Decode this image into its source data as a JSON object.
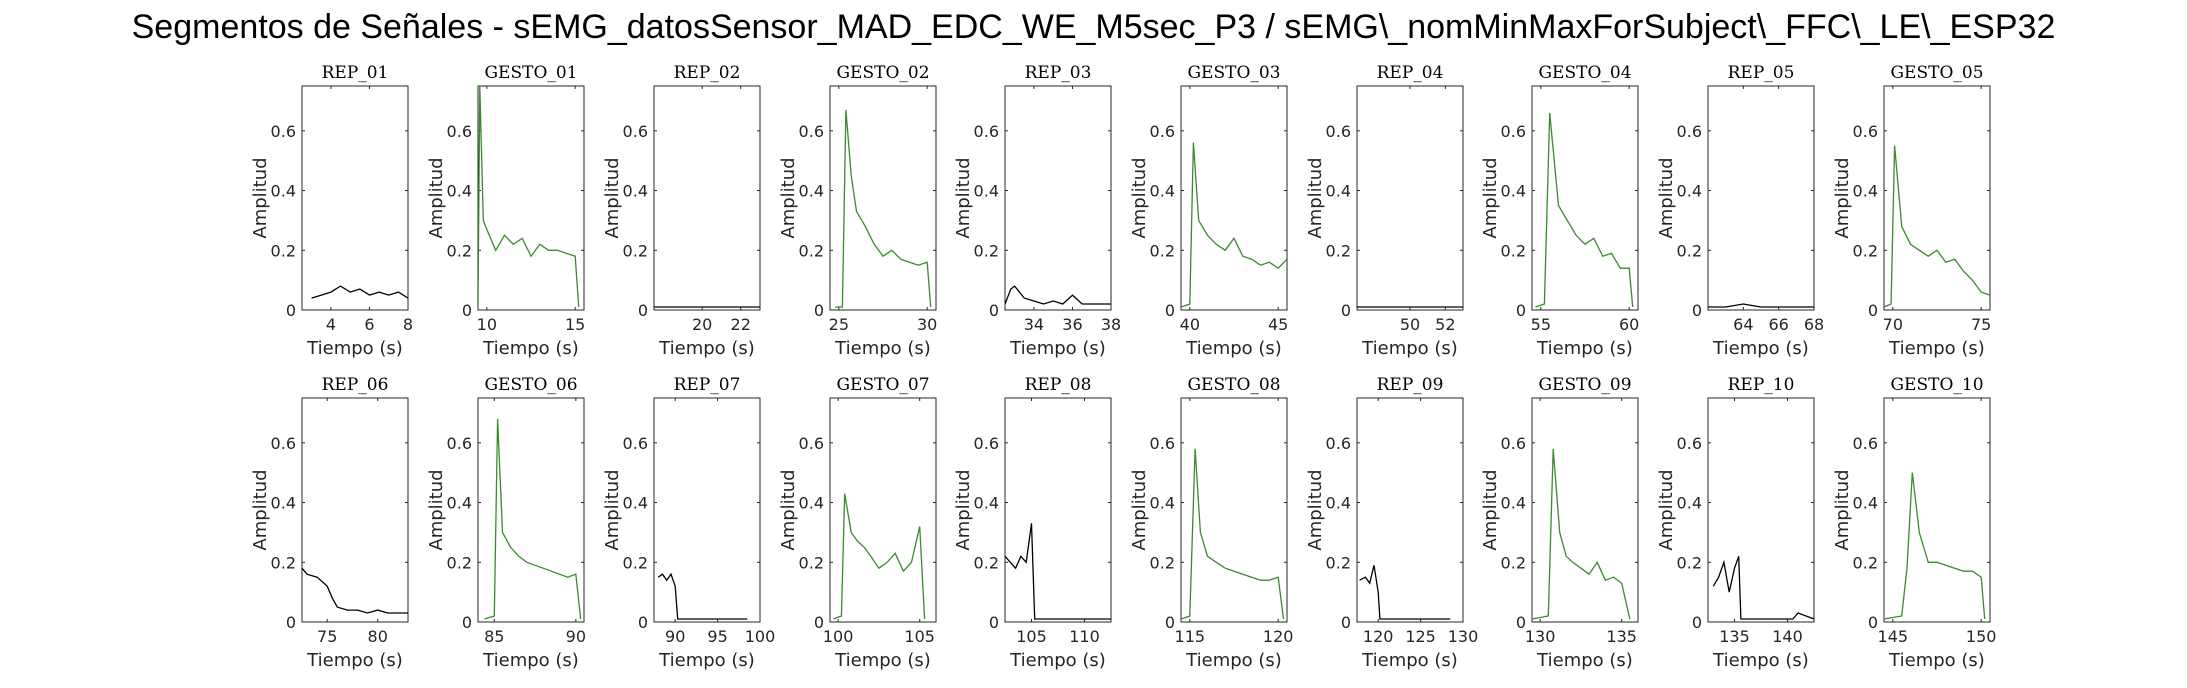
{
  "figure_title": "Segmentos de Señales - sEMG_datosSensor_MAD_EDC_WE_M5sec_P3 / sEMG\\_nomMinMaxForSubject\\_FFC\\_LE\\_ESP32",
  "colors": {
    "rep": "#000000",
    "gesto": "#3a8a2e"
  },
  "chart_data": [
    {
      "type": "line",
      "title": "REP_01",
      "xlabel": "Tiempo (s)",
      "ylabel": "Amplitud",
      "xlim": [
        2.5,
        8
      ],
      "ylim": [
        0,
        0.75
      ],
      "xticks": [
        4,
        6,
        8
      ],
      "yticks": [
        0,
        0.2,
        0.4,
        0.6
      ],
      "series_kind": "rep",
      "x": [
        3,
        3.5,
        4,
        4.5,
        5,
        5.5,
        6,
        6.5,
        7,
        7.5,
        8
      ],
      "y": [
        0.04,
        0.05,
        0.06,
        0.08,
        0.06,
        0.07,
        0.05,
        0.06,
        0.05,
        0.06,
        0.04
      ]
    },
    {
      "type": "line",
      "title": "GESTO_01",
      "xlabel": "Tiempo (s)",
      "ylabel": "Amplitud",
      "xlim": [
        9.5,
        15.5
      ],
      "ylim": [
        0,
        0.75
      ],
      "xticks": [
        10,
        15
      ],
      "yticks": [
        0,
        0.2,
        0.4,
        0.6
      ],
      "series_kind": "gesto",
      "x": [
        9.5,
        9.6,
        9.8,
        10,
        10.5,
        11,
        11.5,
        12,
        12.5,
        13,
        13.5,
        14,
        14.5,
        15,
        15.2
      ],
      "y": [
        0.01,
        0.75,
        0.3,
        0.27,
        0.2,
        0.25,
        0.22,
        0.24,
        0.18,
        0.22,
        0.2,
        0.2,
        0.19,
        0.18,
        0.01
      ]
    },
    {
      "type": "line",
      "title": "REP_02",
      "xlabel": "Tiempo (s)",
      "ylabel": "Amplitud",
      "xlim": [
        17.5,
        23
      ],
      "ylim": [
        0,
        0.75
      ],
      "xticks": [
        20,
        22
      ],
      "yticks": [
        0,
        0.2,
        0.4,
        0.6
      ],
      "series_kind": "rep",
      "x": [
        17.5,
        18.5,
        19.5,
        20.5,
        21.5,
        22.5,
        23
      ],
      "y": [
        0.01,
        0.01,
        0.01,
        0.01,
        0.01,
        0.01,
        0.01
      ]
    },
    {
      "type": "line",
      "title": "GESTO_02",
      "xlabel": "Tiempo (s)",
      "ylabel": "Amplitud",
      "xlim": [
        24.5,
        30.5
      ],
      "ylim": [
        0,
        0.75
      ],
      "xticks": [
        25,
        30
      ],
      "yticks": [
        0,
        0.2,
        0.4,
        0.6
      ],
      "series_kind": "gesto",
      "x": [
        24.8,
        25.2,
        25.4,
        25.7,
        26,
        26.5,
        27,
        27.5,
        28,
        28.5,
        29,
        29.5,
        30,
        30.2
      ],
      "y": [
        0.01,
        0.01,
        0.67,
        0.45,
        0.33,
        0.28,
        0.22,
        0.18,
        0.2,
        0.17,
        0.16,
        0.15,
        0.16,
        0.01
      ]
    },
    {
      "type": "line",
      "title": "REP_03",
      "xlabel": "Tiempo (s)",
      "ylabel": "Amplitud",
      "xlim": [
        32.5,
        38
      ],
      "ylim": [
        0,
        0.75
      ],
      "xticks": [
        34,
        36,
        38
      ],
      "yticks": [
        0,
        0.2,
        0.4,
        0.6
      ],
      "series_kind": "rep",
      "x": [
        32.5,
        32.8,
        33,
        33.5,
        34,
        34.5,
        35,
        35.5,
        36,
        36.5,
        37,
        37.5,
        38
      ],
      "y": [
        0.02,
        0.07,
        0.08,
        0.04,
        0.03,
        0.02,
        0.03,
        0.02,
        0.05,
        0.02,
        0.02,
        0.02,
        0.02
      ]
    },
    {
      "type": "line",
      "title": "GESTO_03",
      "xlabel": "Tiempo (s)",
      "ylabel": "Amplitud",
      "xlim": [
        39.5,
        45.5
      ],
      "ylim": [
        0,
        0.75
      ],
      "xticks": [
        40,
        45
      ],
      "yticks": [
        0,
        0.2,
        0.4,
        0.6
      ],
      "series_kind": "gesto",
      "x": [
        39.5,
        40,
        40.2,
        40.5,
        41,
        41.5,
        42,
        42.5,
        43,
        43.5,
        44,
        44.5,
        45,
        45.5
      ],
      "y": [
        0.01,
        0.02,
        0.56,
        0.3,
        0.25,
        0.22,
        0.2,
        0.24,
        0.18,
        0.17,
        0.15,
        0.16,
        0.14,
        0.17
      ]
    },
    {
      "type": "line",
      "title": "REP_04",
      "xlabel": "Tiempo (s)",
      "ylabel": "Amplitud",
      "xlim": [
        47,
        53
      ],
      "ylim": [
        0,
        0.75
      ],
      "xticks": [
        50,
        52
      ],
      "yticks": [
        0,
        0.2,
        0.4,
        0.6
      ],
      "series_kind": "rep",
      "x": [
        47,
        48,
        49,
        50,
        51,
        52,
        53
      ],
      "y": [
        0.01,
        0.01,
        0.01,
        0.01,
        0.01,
        0.01,
        0.01
      ]
    },
    {
      "type": "line",
      "title": "GESTO_04",
      "xlabel": "Tiempo (s)",
      "ylabel": "Amplitud",
      "xlim": [
        54.5,
        60.5
      ],
      "ylim": [
        0,
        0.75
      ],
      "xticks": [
        55,
        60
      ],
      "yticks": [
        0,
        0.2,
        0.4,
        0.6
      ],
      "series_kind": "gesto",
      "x": [
        54.7,
        55.2,
        55.5,
        56,
        56.5,
        57,
        57.5,
        58,
        58.5,
        59,
        59.5,
        60,
        60.2
      ],
      "y": [
        0.01,
        0.02,
        0.66,
        0.35,
        0.3,
        0.25,
        0.22,
        0.24,
        0.18,
        0.19,
        0.14,
        0.14,
        0.01
      ]
    },
    {
      "type": "line",
      "title": "REP_05",
      "xlabel": "Tiempo (s)",
      "ylabel": "Amplitud",
      "xlim": [
        62,
        68
      ],
      "ylim": [
        0,
        0.75
      ],
      "xticks": [
        64,
        66,
        68
      ],
      "yticks": [
        0,
        0.2,
        0.4,
        0.6
      ],
      "series_kind": "rep",
      "x": [
        62,
        63,
        64,
        65,
        66,
        67,
        68
      ],
      "y": [
        0.01,
        0.01,
        0.02,
        0.01,
        0.01,
        0.01,
        0.01
      ]
    },
    {
      "type": "line",
      "title": "GESTO_05",
      "xlabel": "Tiempo (s)",
      "ylabel": "Amplitud",
      "xlim": [
        69.5,
        75.5
      ],
      "ylim": [
        0,
        0.75
      ],
      "xticks": [
        70,
        75
      ],
      "yticks": [
        0,
        0.2,
        0.4,
        0.6
      ],
      "series_kind": "gesto",
      "x": [
        69.5,
        69.9,
        70.1,
        70.5,
        71,
        71.5,
        72,
        72.5,
        73,
        73.5,
        74,
        74.5,
        75,
        75.5
      ],
      "y": [
        0.01,
        0.02,
        0.55,
        0.28,
        0.22,
        0.2,
        0.18,
        0.2,
        0.16,
        0.17,
        0.13,
        0.1,
        0.06,
        0.05
      ]
    },
    {
      "type": "line",
      "title": "REP_06",
      "xlabel": "Tiempo (s)",
      "ylabel": "Amplitud",
      "xlim": [
        72.5,
        83
      ],
      "ylim": [
        0,
        0.75
      ],
      "xticks": [
        75,
        80
      ],
      "yticks": [
        0,
        0.2,
        0.4,
        0.6
      ],
      "series_kind": "rep",
      "x": [
        72.5,
        73,
        74,
        75,
        75.5,
        76,
        77,
        78,
        79,
        80,
        81,
        82,
        83
      ],
      "y": [
        0.18,
        0.16,
        0.15,
        0.12,
        0.08,
        0.05,
        0.04,
        0.04,
        0.03,
        0.04,
        0.03,
        0.03,
        0.03
      ]
    },
    {
      "type": "line",
      "title": "GESTO_06",
      "xlabel": "Tiempo (s)",
      "ylabel": "Amplitud",
      "xlim": [
        84,
        90.5
      ],
      "ylim": [
        0,
        0.75
      ],
      "xticks": [
        85,
        90
      ],
      "yticks": [
        0,
        0.2,
        0.4,
        0.6
      ],
      "series_kind": "gesto",
      "x": [
        84.4,
        85,
        85.2,
        85.5,
        86,
        86.5,
        87,
        87.5,
        88,
        88.5,
        89,
        89.5,
        90,
        90.3
      ],
      "y": [
        0.01,
        0.02,
        0.68,
        0.3,
        0.25,
        0.22,
        0.2,
        0.19,
        0.18,
        0.17,
        0.16,
        0.15,
        0.16,
        0.01
      ]
    },
    {
      "type": "line",
      "title": "REP_07",
      "xlabel": "Tiempo (s)",
      "ylabel": "Amplitud",
      "xlim": [
        87.5,
        100
      ],
      "ylim": [
        0,
        0.75
      ],
      "xticks": [
        90,
        95,
        100
      ],
      "yticks": [
        0,
        0.2,
        0.4,
        0.6
      ],
      "series_kind": "rep",
      "x": [
        88,
        88.5,
        89,
        89.5,
        90,
        90.3,
        91,
        93,
        95,
        97,
        98.5
      ],
      "y": [
        0.15,
        0.16,
        0.14,
        0.16,
        0.12,
        0.01,
        0.01,
        0.01,
        0.01,
        0.01,
        0.01
      ]
    },
    {
      "type": "line",
      "title": "GESTO_07",
      "xlabel": "Tiempo (s)",
      "ylabel": "Amplitud",
      "xlim": [
        99.5,
        106
      ],
      "ylim": [
        0,
        0.75
      ],
      "xticks": [
        100,
        105
      ],
      "yticks": [
        0,
        0.2,
        0.4,
        0.6
      ],
      "series_kind": "gesto",
      "x": [
        99.7,
        100.2,
        100.4,
        100.8,
        101.2,
        101.6,
        102,
        102.5,
        103,
        103.5,
        104,
        104.5,
        105,
        105.3
      ],
      "y": [
        0.01,
        0.02,
        0.43,
        0.3,
        0.27,
        0.25,
        0.22,
        0.18,
        0.2,
        0.23,
        0.17,
        0.2,
        0.32,
        0.01
      ]
    },
    {
      "type": "line",
      "title": "REP_08",
      "xlabel": "Tiempo (s)",
      "ylabel": "Amplitud",
      "xlim": [
        102.5,
        112.5
      ],
      "ylim": [
        0,
        0.75
      ],
      "xticks": [
        105,
        110
      ],
      "yticks": [
        0,
        0.2,
        0.4,
        0.6
      ],
      "series_kind": "rep",
      "x": [
        102.5,
        103,
        103.5,
        104,
        104.5,
        105,
        105.3,
        106,
        108,
        110,
        112.5
      ],
      "y": [
        0.22,
        0.2,
        0.18,
        0.22,
        0.2,
        0.33,
        0.01,
        0.01,
        0.01,
        0.01,
        0.01
      ]
    },
    {
      "type": "line",
      "title": "GESTO_08",
      "xlabel": "Tiempo (s)",
      "ylabel": "Amplitud",
      "xlim": [
        114.5,
        120.5
      ],
      "ylim": [
        0,
        0.75
      ],
      "xticks": [
        115,
        120
      ],
      "yticks": [
        0,
        0.2,
        0.4,
        0.6
      ],
      "series_kind": "gesto",
      "x": [
        114.5,
        115,
        115.3,
        115.6,
        116,
        116.5,
        117,
        117.5,
        118,
        118.5,
        119,
        119.5,
        120,
        120.3
      ],
      "y": [
        0.01,
        0.02,
        0.58,
        0.3,
        0.22,
        0.2,
        0.18,
        0.17,
        0.16,
        0.15,
        0.14,
        0.14,
        0.15,
        0.01
      ]
    },
    {
      "type": "line",
      "title": "REP_09",
      "xlabel": "Tiempo (s)",
      "ylabel": "Amplitud",
      "xlim": [
        117.5,
        130
      ],
      "ylim": [
        0,
        0.75
      ],
      "xticks": [
        120,
        125,
        130
      ],
      "yticks": [
        0,
        0.2,
        0.4,
        0.6
      ],
      "series_kind": "rep",
      "x": [
        117.8,
        118.5,
        119,
        119.5,
        120,
        120.2,
        121,
        123,
        125,
        127,
        128.5
      ],
      "y": [
        0.14,
        0.15,
        0.13,
        0.19,
        0.1,
        0.01,
        0.01,
        0.01,
        0.01,
        0.01,
        0.01
      ]
    },
    {
      "type": "line",
      "title": "GESTO_09",
      "xlabel": "Tiempo (s)",
      "ylabel": "Amplitud",
      "xlim": [
        129.5,
        136
      ],
      "ylim": [
        0,
        0.75
      ],
      "xticks": [
        130,
        135
      ],
      "yticks": [
        0,
        0.2,
        0.4,
        0.6
      ],
      "series_kind": "gesto",
      "x": [
        129.5,
        130.5,
        130.8,
        131.2,
        131.6,
        132,
        132.5,
        133,
        133.5,
        134,
        134.5,
        135,
        135.5
      ],
      "y": [
        0.01,
        0.02,
        0.58,
        0.3,
        0.22,
        0.2,
        0.18,
        0.16,
        0.2,
        0.14,
        0.15,
        0.13,
        0.01
      ]
    },
    {
      "type": "line",
      "title": "REP_10",
      "xlabel": "Tiempo (s)",
      "ylabel": "Amplitud",
      "xlim": [
        132.5,
        142.5
      ],
      "ylim": [
        0,
        0.75
      ],
      "xticks": [
        135,
        140
      ],
      "yticks": [
        0,
        0.2,
        0.4,
        0.6
      ],
      "series_kind": "rep",
      "x": [
        133,
        133.5,
        134,
        134.5,
        135,
        135.4,
        135.6,
        137,
        139,
        140.5,
        141,
        142.5
      ],
      "y": [
        0.12,
        0.15,
        0.2,
        0.1,
        0.18,
        0.22,
        0.01,
        0.01,
        0.01,
        0.01,
        0.03,
        0.01
      ]
    },
    {
      "type": "line",
      "title": "GESTO_10",
      "xlabel": "Tiempo (s)",
      "ylabel": "Amplitud",
      "xlim": [
        144.5,
        150.5
      ],
      "ylim": [
        0,
        0.75
      ],
      "xticks": [
        145,
        150
      ],
      "yticks": [
        0,
        0.2,
        0.4,
        0.6
      ],
      "series_kind": "gesto",
      "x": [
        144.5,
        145.5,
        145.8,
        146.1,
        146.5,
        147,
        147.5,
        148,
        148.5,
        149,
        149.5,
        150,
        150.2
      ],
      "y": [
        0.01,
        0.02,
        0.18,
        0.5,
        0.3,
        0.2,
        0.2,
        0.19,
        0.18,
        0.17,
        0.17,
        0.15,
        0.01
      ]
    }
  ]
}
